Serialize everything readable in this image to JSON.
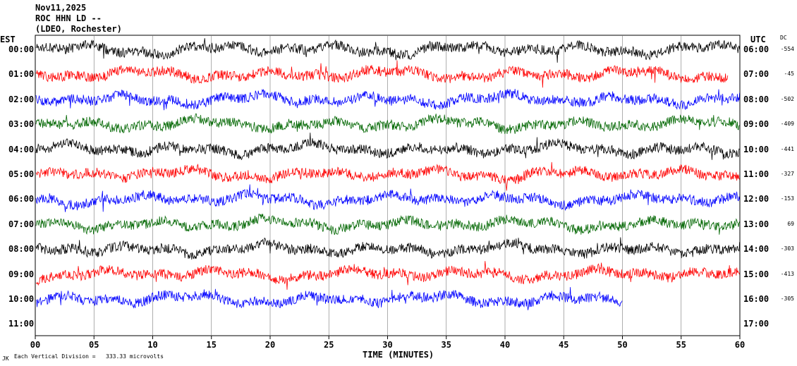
{
  "header": {
    "date": "Nov11,2025",
    "station": "ROC HHN LD --",
    "network": "(LDEO, Rochester)"
  },
  "left_zone": "EST",
  "right_zone": "UTC",
  "dc_label": "DC",
  "footer": {
    "division_note": "Each Vertical Division =   333.33 microvolts",
    "logo_mark": "JK"
  },
  "chart_data": {
    "type": "line",
    "title": "",
    "xlabel": "TIME (MINUTES)",
    "ylabel": "",
    "xlim": [
      0,
      60
    ],
    "x_ticks": [
      "00",
      "05",
      "10",
      "15",
      "20",
      "25",
      "30",
      "35",
      "40",
      "45",
      "50",
      "55",
      "60"
    ],
    "grid": true,
    "colors": {
      "black": "#000000",
      "red": "#ff0000",
      "blue": "#0000ff",
      "green": "#006600"
    },
    "series": [
      {
        "est": "00:00",
        "utc": "06:00",
        "dc": "-554",
        "color": "#000000",
        "end_minute": 60
      },
      {
        "est": "01:00",
        "utc": "07:00",
        "dc": "-45",
        "color": "#ff0000",
        "end_minute": 59
      },
      {
        "est": "02:00",
        "utc": "08:00",
        "dc": "-502",
        "color": "#0000ff",
        "end_minute": 60
      },
      {
        "est": "03:00",
        "utc": "09:00",
        "dc": "-409",
        "color": "#006600",
        "end_minute": 60
      },
      {
        "est": "04:00",
        "utc": "10:00",
        "dc": "-441",
        "color": "#000000",
        "end_minute": 60
      },
      {
        "est": "05:00",
        "utc": "11:00",
        "dc": "-327",
        "color": "#ff0000",
        "end_minute": 60
      },
      {
        "est": "06:00",
        "utc": "12:00",
        "dc": "-153",
        "color": "#0000ff",
        "end_minute": 60
      },
      {
        "est": "07:00",
        "utc": "13:00",
        "dc": "69",
        "color": "#006600",
        "end_minute": 60
      },
      {
        "est": "08:00",
        "utc": "14:00",
        "dc": "-303",
        "color": "#000000",
        "end_minute": 60
      },
      {
        "est": "09:00",
        "utc": "15:00",
        "dc": "-413",
        "color": "#ff0000",
        "end_minute": 60
      },
      {
        "est": "10:00",
        "utc": "16:00",
        "dc": "-305",
        "color": "#0000ff",
        "end_minute": 50
      },
      {
        "est": "11:00",
        "utc": "17:00",
        "dc": "",
        "color": "#000000",
        "end_minute": 0
      }
    ]
  }
}
